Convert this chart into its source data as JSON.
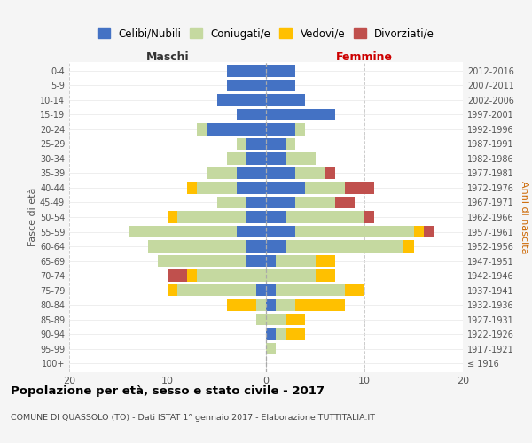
{
  "age_groups": [
    "100+",
    "95-99",
    "90-94",
    "85-89",
    "80-84",
    "75-79",
    "70-74",
    "65-69",
    "60-64",
    "55-59",
    "50-54",
    "45-49",
    "40-44",
    "35-39",
    "30-34",
    "25-29",
    "20-24",
    "15-19",
    "10-14",
    "5-9",
    "0-4"
  ],
  "birth_years": [
    "≤ 1916",
    "1917-1921",
    "1922-1926",
    "1927-1931",
    "1932-1936",
    "1937-1941",
    "1942-1946",
    "1947-1951",
    "1952-1956",
    "1957-1961",
    "1962-1966",
    "1967-1971",
    "1972-1976",
    "1977-1981",
    "1982-1986",
    "1987-1991",
    "1992-1996",
    "1997-2001",
    "2002-2006",
    "2007-2011",
    "2012-2016"
  ],
  "males": {
    "celibi": [
      0,
      0,
      0,
      0,
      0,
      1,
      0,
      2,
      2,
      3,
      2,
      2,
      3,
      3,
      2,
      2,
      6,
      3,
      5,
      4,
      4
    ],
    "coniugati": [
      0,
      0,
      0,
      1,
      1,
      8,
      7,
      9,
      10,
      11,
      7,
      3,
      4,
      3,
      2,
      1,
      1,
      0,
      0,
      0,
      0
    ],
    "vedovi": [
      0,
      0,
      0,
      0,
      3,
      1,
      1,
      0,
      0,
      0,
      1,
      0,
      1,
      0,
      0,
      0,
      0,
      0,
      0,
      0,
      0
    ],
    "divorziati": [
      0,
      0,
      0,
      0,
      0,
      0,
      2,
      0,
      0,
      0,
      0,
      0,
      0,
      0,
      0,
      0,
      0,
      0,
      0,
      0,
      0
    ]
  },
  "females": {
    "nubili": [
      0,
      0,
      1,
      0,
      1,
      1,
      0,
      1,
      2,
      3,
      2,
      3,
      4,
      3,
      2,
      2,
      3,
      7,
      4,
      3,
      3
    ],
    "coniugate": [
      0,
      1,
      1,
      2,
      2,
      7,
      5,
      4,
      12,
      12,
      8,
      4,
      4,
      3,
      3,
      1,
      1,
      0,
      0,
      0,
      0
    ],
    "vedove": [
      0,
      0,
      2,
      2,
      5,
      2,
      2,
      2,
      1,
      1,
      0,
      0,
      0,
      0,
      0,
      0,
      0,
      0,
      0,
      0,
      0
    ],
    "divorziate": [
      0,
      0,
      0,
      0,
      0,
      0,
      0,
      0,
      0,
      1,
      1,
      2,
      3,
      1,
      0,
      0,
      0,
      0,
      0,
      0,
      0
    ]
  },
  "colors": {
    "celibi": "#4472c4",
    "coniugati": "#c5d9a0",
    "vedovi": "#ffc000",
    "divorziati": "#c0504d"
  },
  "xlim": 20,
  "title": "Popolazione per età, sesso e stato civile - 2017",
  "subtitle": "COMUNE DI QUASSOLO (TO) - Dati ISTAT 1° gennaio 2017 - Elaborazione TUTTITALIA.IT",
  "ylabel_left": "Fasce di età",
  "ylabel_right": "Anni di nascita",
  "xlabel_male": "Maschi",
  "xlabel_female": "Femmine",
  "legend_labels": [
    "Celibi/Nubili",
    "Coniugati/e",
    "Vedovi/e",
    "Divorziati/e"
  ],
  "bg_color": "#f5f5f5",
  "plot_bg": "#ffffff"
}
